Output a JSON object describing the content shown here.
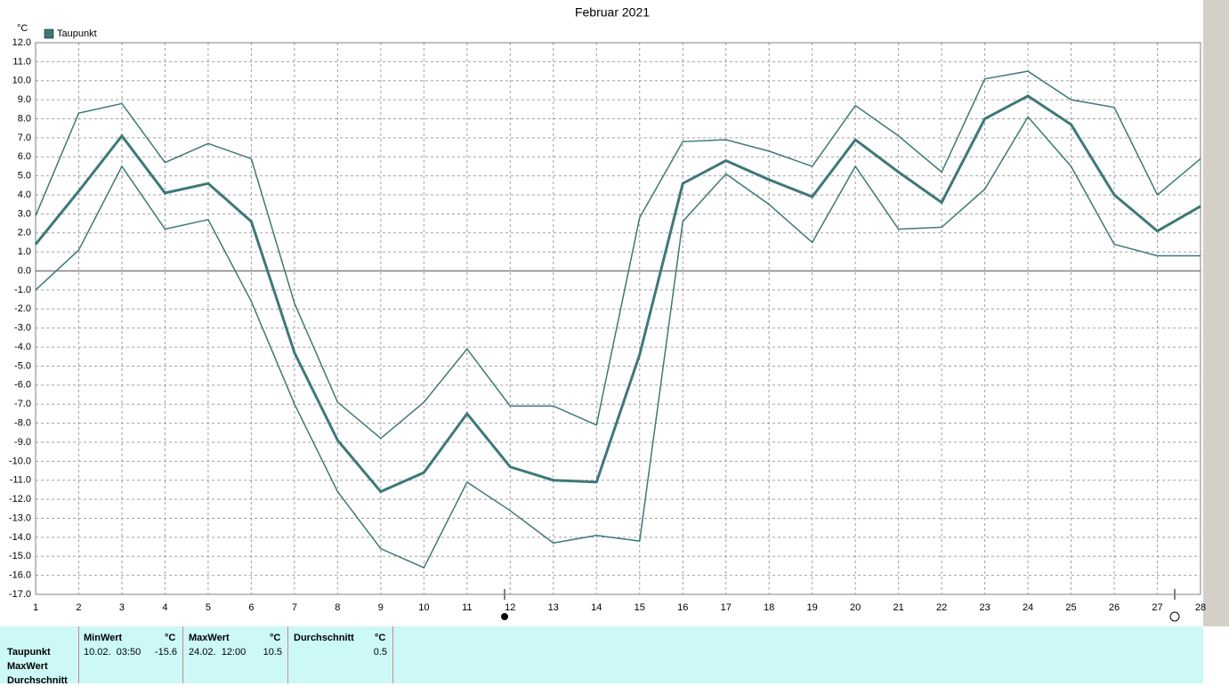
{
  "chart_data": {
    "type": "line",
    "title": "Februar 2021",
    "y_unit": "°C",
    "x": [
      1,
      2,
      3,
      4,
      5,
      6,
      7,
      8,
      9,
      10,
      11,
      12,
      13,
      14,
      15,
      16,
      17,
      18,
      19,
      20,
      21,
      22,
      23,
      24,
      25,
      26,
      27,
      28
    ],
    "xlim": [
      1,
      28
    ],
    "xticks": [
      1,
      2,
      3,
      4,
      5,
      6,
      7,
      8,
      9,
      10,
      11,
      12,
      13,
      14,
      15,
      16,
      17,
      18,
      19,
      20,
      21,
      22,
      23,
      24,
      25,
      26,
      27,
      28
    ],
    "ylim": [
      -17,
      12
    ],
    "yticks": [
      {
        "value": 12,
        "label": "12.0"
      },
      {
        "value": 11,
        "label": "11.0"
      },
      {
        "value": 10,
        "label": "10.0"
      },
      {
        "value": 9,
        "label": "9.0"
      },
      {
        "value": 8,
        "label": "8.0"
      },
      {
        "value": 7,
        "label": "7.0"
      },
      {
        "value": 6,
        "label": "6.0"
      },
      {
        "value": 5,
        "label": "5.0"
      },
      {
        "value": 4,
        "label": "4.0"
      },
      {
        "value": 3,
        "label": "3.0"
      },
      {
        "value": 2,
        "label": "2.0"
      },
      {
        "value": 1,
        "label": "1.0"
      },
      {
        "value": 0,
        "label": "0.0"
      },
      {
        "value": -1,
        "label": "-1.0"
      },
      {
        "value": -2,
        "label": "-2.0"
      },
      {
        "value": -3,
        "label": "-3.0"
      },
      {
        "value": -4,
        "label": "-4.0"
      },
      {
        "value": -5,
        "label": "-5.0"
      },
      {
        "value": -6,
        "label": "-6.0"
      },
      {
        "value": -7,
        "label": "-7.0"
      },
      {
        "value": -8,
        "label": "-8.0"
      },
      {
        "value": -9,
        "label": "-9.0"
      },
      {
        "value": -10,
        "label": "-10.0"
      },
      {
        "value": -11,
        "label": "-11.0"
      },
      {
        "value": -12,
        "label": "-12.0"
      },
      {
        "value": -13,
        "label": "-13.0"
      },
      {
        "value": -14,
        "label": "-14.0"
      },
      {
        "value": -15,
        "label": "-15.0"
      },
      {
        "value": -16,
        "label": "-16.0"
      },
      {
        "value": -17,
        "label": "-17.0"
      }
    ],
    "grid": true,
    "series": [
      {
        "name": "Taupunkt",
        "color": "#3e7878",
        "width": 3,
        "values": [
          1.4,
          4.2,
          7.1,
          4.1,
          4.6,
          2.6,
          -4.3,
          -8.9,
          -11.6,
          -10.6,
          -7.5,
          -10.3,
          -11.0,
          -11.1,
          -4.4,
          4.6,
          5.8,
          4.8,
          3.9,
          6.9,
          5.2,
          3.6,
          8.0,
          9.2,
          7.7,
          4.0,
          2.1,
          3.4
        ]
      },
      {
        "color": "#3e7878",
        "width": 1.5,
        "values": [
          2.9,
          8.3,
          8.8,
          5.7,
          6.7,
          5.9,
          -1.7,
          -6.9,
          -8.8,
          -6.9,
          -4.1,
          -7.1,
          -7.1,
          -8.1,
          2.8,
          6.8,
          6.9,
          6.3,
          5.5,
          8.7,
          7.1,
          5.2,
          10.1,
          10.5,
          9.0,
          8.6,
          4.0,
          5.9
        ]
      },
      {
        "color": "#3e7878",
        "width": 1.5,
        "values": [
          -1.0,
          1.1,
          5.5,
          2.2,
          2.7,
          -1.6,
          -7.0,
          -11.6,
          -14.6,
          -15.6,
          -11.1,
          -12.6,
          -14.3,
          -13.9,
          -14.2,
          2.6,
          5.1,
          3.5,
          1.5,
          5.5,
          2.2,
          2.3,
          4.3,
          8.1,
          5.5,
          1.4,
          0.8,
          0.8
        ]
      }
    ]
  },
  "table": {
    "columns": [
      {
        "name": "MinWert",
        "unit": "°C"
      },
      {
        "name": "MaxWert",
        "unit": "°C"
      },
      {
        "name": "Durchschnitt",
        "unit": "°C"
      }
    ],
    "rows": [
      {
        "label": "Taupunkt",
        "cells": [
          {
            "time": "10.02.  03:50",
            "value": -15.6
          },
          {
            "time": "24.02.  12:00",
            "value": 10.5
          },
          {
            "value": 0.5
          }
        ]
      },
      {
        "label": "MaxWert"
      },
      {
        "label": "Durchschnitt"
      }
    ]
  }
}
